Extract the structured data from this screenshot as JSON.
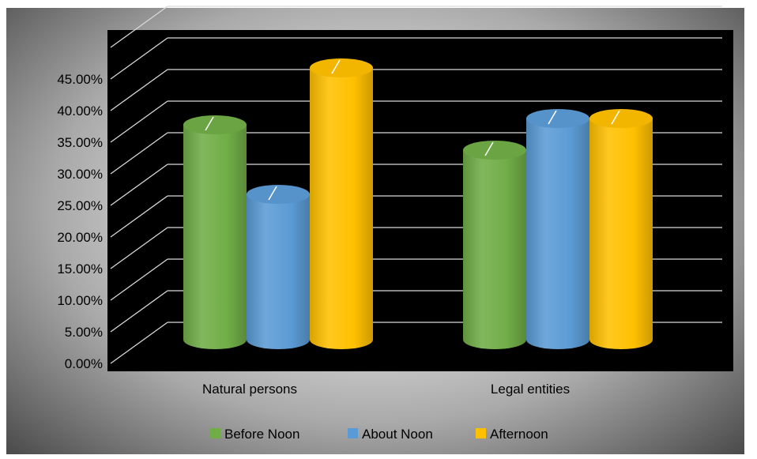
{
  "chart_data": {
    "type": "bar",
    "style": "3d-cylinder",
    "categories": [
      "Natural persons",
      "Legal entities"
    ],
    "series": [
      {
        "name": "Before Noon",
        "color": "#70AD47",
        "values": [
          0.34,
          0.3
        ]
      },
      {
        "name": "About Noon",
        "color": "#5B9BD5",
        "values": [
          0.23,
          0.35
        ]
      },
      {
        "name": "Afternoon",
        "color": "#FFC000",
        "values": [
          0.43,
          0.35
        ]
      }
    ],
    "y_ticks": [
      "0.00%",
      "5.00%",
      "10.00%",
      "15.00%",
      "20.00%",
      "25.00%",
      "30.00%",
      "35.00%",
      "40.00%",
      "45.00%"
    ],
    "ylim": [
      0,
      0.5
    ],
    "grid": true,
    "legend_position": "bottom",
    "plot_background": "#000000",
    "gridline_color": "#d9d9d9"
  }
}
